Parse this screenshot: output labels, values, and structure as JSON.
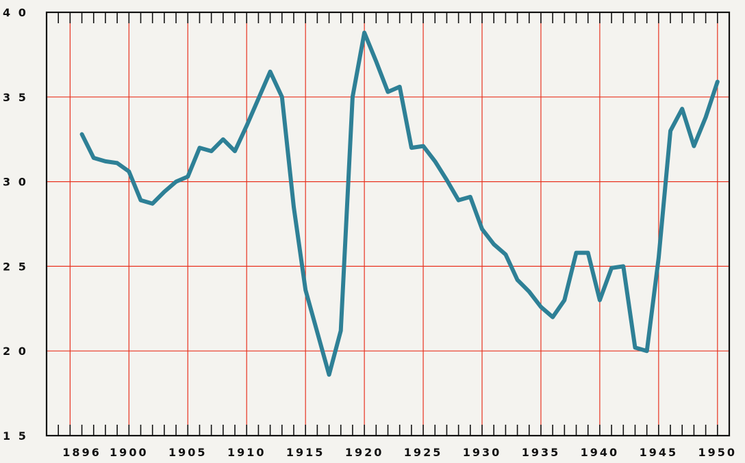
{
  "chart_data": {
    "type": "line",
    "title": "",
    "xlabel": "",
    "ylabel": "",
    "xlim": [
      1893,
      1951
    ],
    "ylim": [
      15,
      40
    ],
    "x_tick_labels": [
      "1896",
      "1900",
      "1905",
      "1910",
      "1915",
      "1920",
      "1925",
      "1930",
      "1935",
      "1940",
      "1945",
      "1950"
    ],
    "y_tick_labels": [
      "15",
      "20",
      "25",
      "30",
      "35",
      "40"
    ],
    "grid": true,
    "colors": {
      "line": "#2e8096",
      "grid": "#e8321f",
      "frame": "#111111",
      "background": "#f4f3ef"
    },
    "series": [
      {
        "x": [
          1896,
          1897,
          1898,
          1899,
          1900,
          1901,
          1902,
          1903,
          1904,
          1905,
          1906,
          1907,
          1908,
          1909,
          1910,
          1911,
          1912,
          1913,
          1914,
          1915,
          1916,
          1917,
          1918,
          1919,
          1920,
          1921,
          1922,
          1923,
          1924,
          1925,
          1926,
          1927,
          1928,
          1929,
          1930,
          1931,
          1932,
          1933,
          1934,
          1935,
          1936,
          1937,
          1938,
          1939,
          1940,
          1941,
          1942,
          1943,
          1944,
          1945,
          1946,
          1947,
          1948,
          1949,
          1950
        ],
        "values": [
          32.8,
          31.4,
          31.2,
          31.1,
          30.6,
          28.9,
          28.7,
          29.4,
          30.0,
          30.3,
          32.0,
          31.8,
          32.5,
          31.8,
          33.3,
          34.9,
          36.5,
          35.0,
          28.5,
          23.6,
          21.1,
          18.6,
          21.2,
          35.0,
          38.8,
          37.1,
          35.3,
          35.6,
          32.0,
          32.1,
          31.2,
          30.1,
          28.9,
          29.1,
          27.2,
          26.3,
          25.7,
          24.2,
          23.5,
          22.6,
          22.0,
          23.0,
          25.8,
          25.8,
          23.0,
          24.9,
          25.0,
          20.2,
          20.0,
          25.5,
          33.0,
          34.3,
          32.1,
          33.8,
          35.9
        ]
      }
    ]
  }
}
